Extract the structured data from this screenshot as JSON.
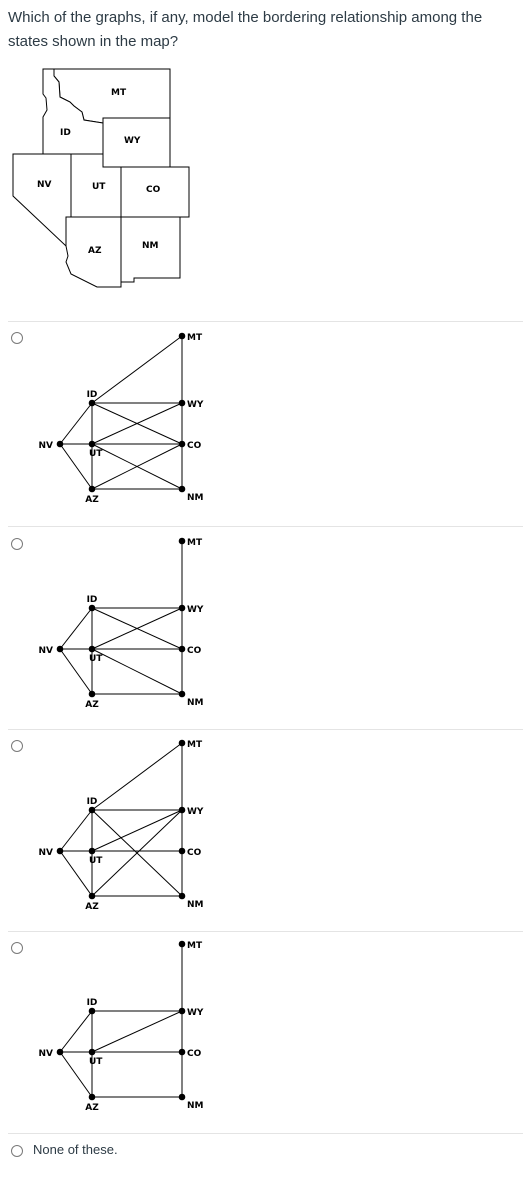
{
  "question": {
    "text": "Which of the graphs, if any, model the bordering relationship among the states shown in the map?"
  },
  "map": {
    "states": [
      {
        "code": "MT"
      },
      {
        "code": "ID"
      },
      {
        "code": "WY"
      },
      {
        "code": "NV"
      },
      {
        "code": "UT"
      },
      {
        "code": "CO"
      },
      {
        "code": "AZ"
      },
      {
        "code": "NM"
      }
    ]
  },
  "vertex_labels": {
    "MT": "MT",
    "ID": "ID",
    "WY": "WY",
    "NV": "NV",
    "UT": "UT",
    "CO": "CO",
    "AZ": "AZ",
    "NM": "NM"
  },
  "options": [
    {
      "edges": [
        [
          "MT",
          "ID"
        ],
        [
          "MT",
          "WY"
        ],
        [
          "ID",
          "WY"
        ],
        [
          "ID",
          "UT"
        ],
        [
          "ID",
          "CO"
        ],
        [
          "NV",
          "ID"
        ],
        [
          "NV",
          "UT"
        ],
        [
          "NV",
          "AZ"
        ],
        [
          "UT",
          "CO"
        ],
        [
          "UT",
          "WY"
        ],
        [
          "UT",
          "NM"
        ],
        [
          "UT",
          "AZ"
        ],
        [
          "AZ",
          "NM"
        ],
        [
          "AZ",
          "CO"
        ],
        [
          "WY",
          "CO"
        ],
        [
          "CO",
          "NM"
        ]
      ]
    },
    {
      "edges": [
        [
          "MT",
          "WY"
        ],
        [
          "ID",
          "WY"
        ],
        [
          "ID",
          "UT"
        ],
        [
          "ID",
          "CO"
        ],
        [
          "NV",
          "ID"
        ],
        [
          "NV",
          "UT"
        ],
        [
          "NV",
          "AZ"
        ],
        [
          "UT",
          "CO"
        ],
        [
          "UT",
          "WY"
        ],
        [
          "UT",
          "NM"
        ],
        [
          "UT",
          "AZ"
        ],
        [
          "AZ",
          "NM"
        ],
        [
          "WY",
          "CO"
        ],
        [
          "CO",
          "NM"
        ]
      ]
    },
    {
      "edges": [
        [
          "MT",
          "ID"
        ],
        [
          "MT",
          "WY"
        ],
        [
          "ID",
          "WY"
        ],
        [
          "ID",
          "UT"
        ],
        [
          "ID",
          "NM"
        ],
        [
          "NV",
          "ID"
        ],
        [
          "NV",
          "UT"
        ],
        [
          "NV",
          "AZ"
        ],
        [
          "UT",
          "CO"
        ],
        [
          "UT",
          "WY"
        ],
        [
          "UT",
          "AZ"
        ],
        [
          "AZ",
          "NM"
        ],
        [
          "AZ",
          "WY"
        ],
        [
          "WY",
          "CO"
        ],
        [
          "CO",
          "NM"
        ]
      ]
    },
    {
      "edges": [
        [
          "MT",
          "WY"
        ],
        [
          "ID",
          "WY"
        ],
        [
          "ID",
          "UT"
        ],
        [
          "NV",
          "ID"
        ],
        [
          "NV",
          "UT"
        ],
        [
          "NV",
          "AZ"
        ],
        [
          "UT",
          "CO"
        ],
        [
          "UT",
          "WY"
        ],
        [
          "UT",
          "AZ"
        ],
        [
          "AZ",
          "NM"
        ],
        [
          "WY",
          "CO"
        ],
        [
          "CO",
          "NM"
        ]
      ]
    },
    {
      "label": "None of these."
    }
  ]
}
